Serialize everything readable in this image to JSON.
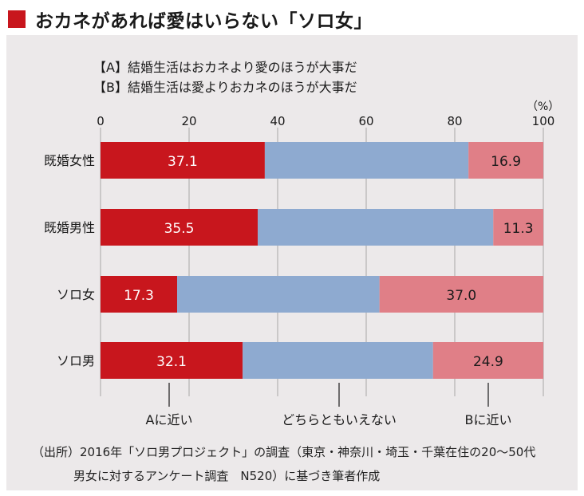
{
  "title": "おカネがあれば愛はいらない「ソロ女」",
  "legend_a": "【A】結婚生活はおカネより愛のほうが大事だ",
  "legend_b": "【B】結婚生活は愛よりおカネのほうが大事だ",
  "unit": "（%）",
  "source_line1": "（出所）2016年「ソロ男プロジェクト」の調査（東京・神奈川・埼玉・千葉在住の20～50代",
  "source_line2": "男女に対するアンケート調査　N520）に基づき筆者作成",
  "colors": {
    "title_square": "#c8161d",
    "a": "#c8161d",
    "middle": "#8eaad0",
    "b": "#e07f87"
  },
  "chart_data": {
    "type": "bar",
    "orientation": "horizontal",
    "stacked": true,
    "xlim": [
      0,
      100
    ],
    "xticks": [
      "0",
      "20",
      "40",
      "60",
      "80",
      "100"
    ],
    "categories": [
      "既婚女性",
      "既婚男性",
      "ソロ女",
      "ソロ男"
    ],
    "series": [
      {
        "name": "Aに近い",
        "values": [
          37.1,
          35.5,
          17.3,
          32.1
        ]
      },
      {
        "name": "どちらともいえない",
        "values": [
          46.0,
          53.2,
          45.7,
          43.0
        ]
      },
      {
        "name": "Bに近い",
        "values": [
          16.9,
          11.3,
          37.0,
          24.9
        ]
      }
    ],
    "data_labels": {
      "a": [
        "37.1",
        "35.5",
        "17.3",
        "32.1"
      ],
      "b": [
        "16.9",
        "11.3",
        "37.0",
        "24.9"
      ]
    },
    "bottom_labels": [
      "Aに近い",
      "どちらともいえない",
      "Bに近い"
    ],
    "grid": true
  }
}
